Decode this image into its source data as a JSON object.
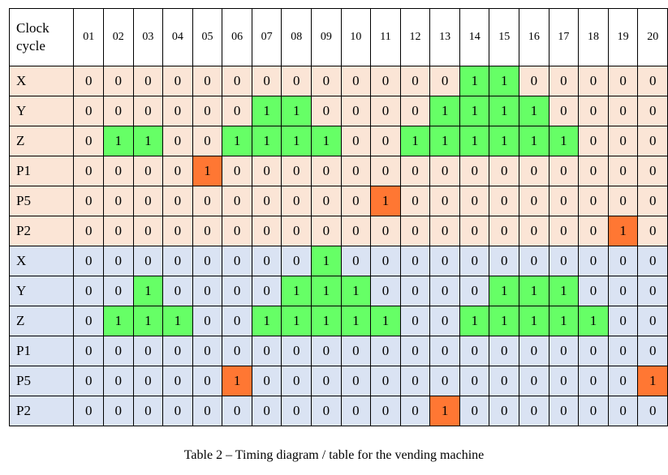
{
  "table": {
    "corner_label_line1": "Clock",
    "corner_label_line2": "cycle",
    "columns": [
      "01",
      "02",
      "03",
      "04",
      "05",
      "06",
      "07",
      "08",
      "09",
      "10",
      "11",
      "12",
      "13",
      "14",
      "15",
      "16",
      "17",
      "18",
      "19",
      "20"
    ],
    "colors": {
      "group_a_bg": "#fbe5d6",
      "group_b_bg": "#dae3f3",
      "highlight_green": "#66ff66",
      "highlight_orange": "#ff7733"
    },
    "rows": [
      {
        "label": "X",
        "group": "a",
        "values": [
          0,
          0,
          0,
          0,
          0,
          0,
          0,
          0,
          0,
          0,
          0,
          0,
          0,
          1,
          1,
          0,
          0,
          0,
          0,
          0
        ],
        "highlights": [
          0,
          0,
          0,
          0,
          0,
          0,
          0,
          0,
          0,
          0,
          0,
          0,
          0,
          1,
          1,
          0,
          0,
          0,
          0,
          0
        ]
      },
      {
        "label": "Y",
        "group": "a",
        "values": [
          0,
          0,
          0,
          0,
          0,
          0,
          1,
          1,
          0,
          0,
          0,
          0,
          1,
          1,
          1,
          1,
          0,
          0,
          0,
          0
        ],
        "highlights": [
          0,
          0,
          0,
          0,
          0,
          0,
          1,
          1,
          0,
          0,
          0,
          0,
          1,
          1,
          1,
          1,
          0,
          0,
          0,
          0
        ]
      },
      {
        "label": "Z",
        "group": "a",
        "values": [
          0,
          1,
          1,
          0,
          0,
          1,
          1,
          1,
          1,
          0,
          0,
          1,
          1,
          1,
          1,
          1,
          1,
          0,
          0,
          0
        ],
        "highlights": [
          0,
          1,
          1,
          0,
          0,
          1,
          1,
          1,
          1,
          0,
          0,
          1,
          1,
          1,
          1,
          1,
          1,
          0,
          0,
          0
        ]
      },
      {
        "label": "P1",
        "group": "a",
        "values": [
          0,
          0,
          0,
          0,
          1,
          0,
          0,
          0,
          0,
          0,
          0,
          0,
          0,
          0,
          0,
          0,
          0,
          0,
          0,
          0
        ],
        "highlights": [
          0,
          0,
          0,
          0,
          2,
          0,
          0,
          0,
          0,
          0,
          0,
          0,
          0,
          0,
          0,
          0,
          0,
          0,
          0,
          0
        ]
      },
      {
        "label": "P5",
        "group": "a",
        "values": [
          0,
          0,
          0,
          0,
          0,
          0,
          0,
          0,
          0,
          0,
          1,
          0,
          0,
          0,
          0,
          0,
          0,
          0,
          0,
          0
        ],
        "highlights": [
          0,
          0,
          0,
          0,
          0,
          0,
          0,
          0,
          0,
          0,
          2,
          0,
          0,
          0,
          0,
          0,
          0,
          0,
          0,
          0
        ]
      },
      {
        "label": "P2",
        "group": "a",
        "values": [
          0,
          0,
          0,
          0,
          0,
          0,
          0,
          0,
          0,
          0,
          0,
          0,
          0,
          0,
          0,
          0,
          0,
          0,
          1,
          0
        ],
        "highlights": [
          0,
          0,
          0,
          0,
          0,
          0,
          0,
          0,
          0,
          0,
          0,
          0,
          0,
          0,
          0,
          0,
          0,
          0,
          2,
          0
        ]
      },
      {
        "label": "X",
        "group": "b",
        "values": [
          0,
          0,
          0,
          0,
          0,
          0,
          0,
          0,
          1,
          0,
          0,
          0,
          0,
          0,
          0,
          0,
          0,
          0,
          0,
          0
        ],
        "highlights": [
          0,
          0,
          0,
          0,
          0,
          0,
          0,
          0,
          1,
          0,
          0,
          0,
          0,
          0,
          0,
          0,
          0,
          0,
          0,
          0
        ]
      },
      {
        "label": "Y",
        "group": "b",
        "values": [
          0,
          0,
          1,
          0,
          0,
          0,
          0,
          1,
          1,
          1,
          0,
          0,
          0,
          0,
          1,
          1,
          1,
          0,
          0,
          0
        ],
        "highlights": [
          0,
          0,
          1,
          0,
          0,
          0,
          0,
          1,
          1,
          1,
          0,
          0,
          0,
          0,
          1,
          1,
          1,
          0,
          0,
          0
        ]
      },
      {
        "label": "Z",
        "group": "b",
        "values": [
          0,
          1,
          1,
          1,
          0,
          0,
          1,
          1,
          1,
          1,
          1,
          0,
          0,
          1,
          1,
          1,
          1,
          1,
          0,
          0
        ],
        "highlights": [
          0,
          1,
          1,
          1,
          0,
          0,
          1,
          1,
          1,
          1,
          1,
          0,
          0,
          1,
          1,
          1,
          1,
          1,
          0,
          0
        ]
      },
      {
        "label": "P1",
        "group": "b",
        "values": [
          0,
          0,
          0,
          0,
          0,
          0,
          0,
          0,
          0,
          0,
          0,
          0,
          0,
          0,
          0,
          0,
          0,
          0,
          0,
          0
        ],
        "highlights": [
          0,
          0,
          0,
          0,
          0,
          0,
          0,
          0,
          0,
          0,
          0,
          0,
          0,
          0,
          0,
          0,
          0,
          0,
          0,
          0
        ]
      },
      {
        "label": "P5",
        "group": "b",
        "values": [
          0,
          0,
          0,
          0,
          0,
          1,
          0,
          0,
          0,
          0,
          0,
          0,
          0,
          0,
          0,
          0,
          0,
          0,
          0,
          1
        ],
        "highlights": [
          0,
          0,
          0,
          0,
          0,
          2,
          0,
          0,
          0,
          0,
          0,
          0,
          0,
          0,
          0,
          0,
          0,
          0,
          0,
          2
        ]
      },
      {
        "label": "P2",
        "group": "b",
        "values": [
          0,
          0,
          0,
          0,
          0,
          0,
          0,
          0,
          0,
          0,
          0,
          0,
          1,
          0,
          0,
          0,
          0,
          0,
          0,
          0
        ],
        "highlights": [
          0,
          0,
          0,
          0,
          0,
          0,
          0,
          0,
          0,
          0,
          0,
          0,
          2,
          0,
          0,
          0,
          0,
          0,
          0,
          0
        ]
      }
    ]
  },
  "caption": "Table 2 – Timing diagram / table for the vending machine"
}
